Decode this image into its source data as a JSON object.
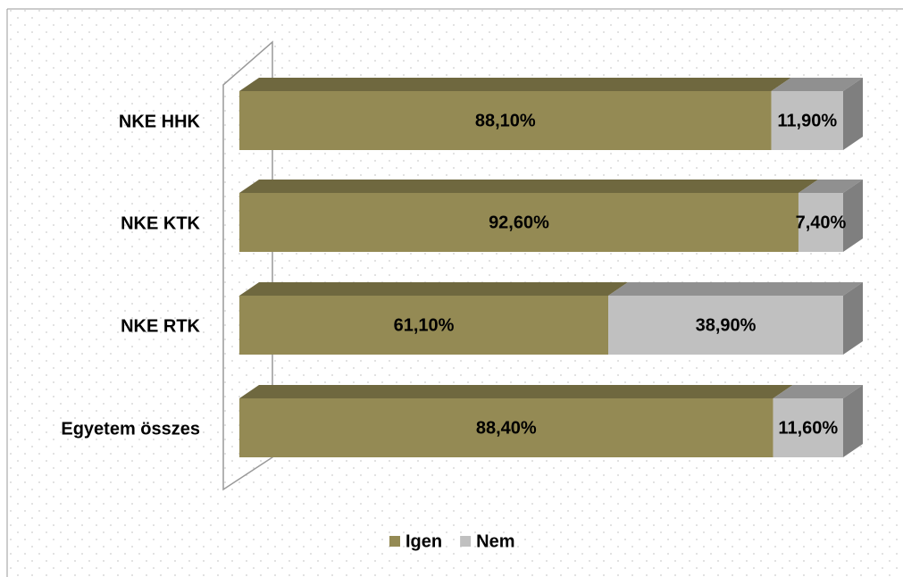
{
  "chart_data": {
    "type": "bar",
    "orientation": "horizontal",
    "stacked": "percent",
    "three_d": true,
    "categories": [
      "NKE HHK",
      "NKE KTK",
      "NKE RTK",
      "Egyetem összes"
    ],
    "series": [
      {
        "name": "Igen",
        "color": "#948a54",
        "values": [
          88.1,
          92.6,
          61.1,
          88.4
        ],
        "value_labels": [
          "88,10%",
          "92,60%",
          "61,10%",
          "88,40%"
        ]
      },
      {
        "name": "Nem",
        "color": "#c0c0c0",
        "values": [
          11.9,
          7.4,
          38.9,
          11.6
        ],
        "value_labels": [
          "11,90%",
          "7,40%",
          "38,90%",
          "11,60%"
        ]
      }
    ],
    "legend": "bottom"
  }
}
